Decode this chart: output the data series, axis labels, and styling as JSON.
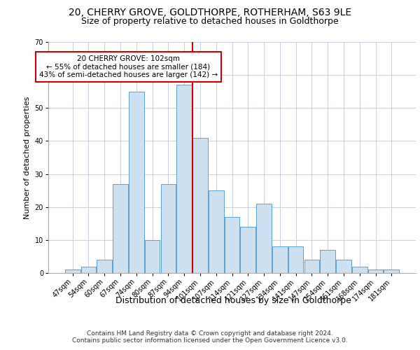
{
  "title1": "20, CHERRY GROVE, GOLDTHORPE, ROTHERHAM, S63 9LE",
  "title2": "Size of property relative to detached houses in Goldthorpe",
  "xlabel": "Distribution of detached houses by size in Goldthorpe",
  "ylabel": "Number of detached properties",
  "footer1": "Contains HM Land Registry data © Crown copyright and database right 2024.",
  "footer2": "Contains public sector information licensed under the Open Government Licence v3.0.",
  "bin_labels": [
    "47sqm",
    "54sqm",
    "60sqm",
    "67sqm",
    "74sqm",
    "80sqm",
    "87sqm",
    "94sqm",
    "101sqm",
    "107sqm",
    "114sqm",
    "121sqm",
    "127sqm",
    "134sqm",
    "141sqm",
    "147sqm",
    "154sqm",
    "161sqm",
    "168sqm",
    "174sqm",
    "181sqm"
  ],
  "bar_values": [
    1,
    2,
    4,
    27,
    55,
    10,
    27,
    57,
    41,
    25,
    17,
    14,
    21,
    8,
    8,
    4,
    7,
    4,
    2,
    1,
    1
  ],
  "bar_color": "#cde0f0",
  "bar_edge_color": "#5a9fd4",
  "vline_x_index": 8,
  "vline_color": "#cc0000",
  "annotation_text": "20 CHERRY GROVE: 102sqm\n← 55% of detached houses are smaller (184)\n43% of semi-detached houses are larger (142) →",
  "annotation_box_color": "#ffffff",
  "annotation_box_edge": "#cc0000",
  "ylim": [
    0,
    70
  ],
  "yticks": [
    0,
    10,
    20,
    30,
    40,
    50,
    60,
    70
  ],
  "background_color": "#ffffff",
  "grid_color": "#c0c8d8",
  "title1_fontsize": 10,
  "title2_fontsize": 9,
  "xlabel_fontsize": 9,
  "ylabel_fontsize": 8,
  "tick_fontsize": 7,
  "annotation_fontsize": 7.5,
  "footer_fontsize": 6.5
}
